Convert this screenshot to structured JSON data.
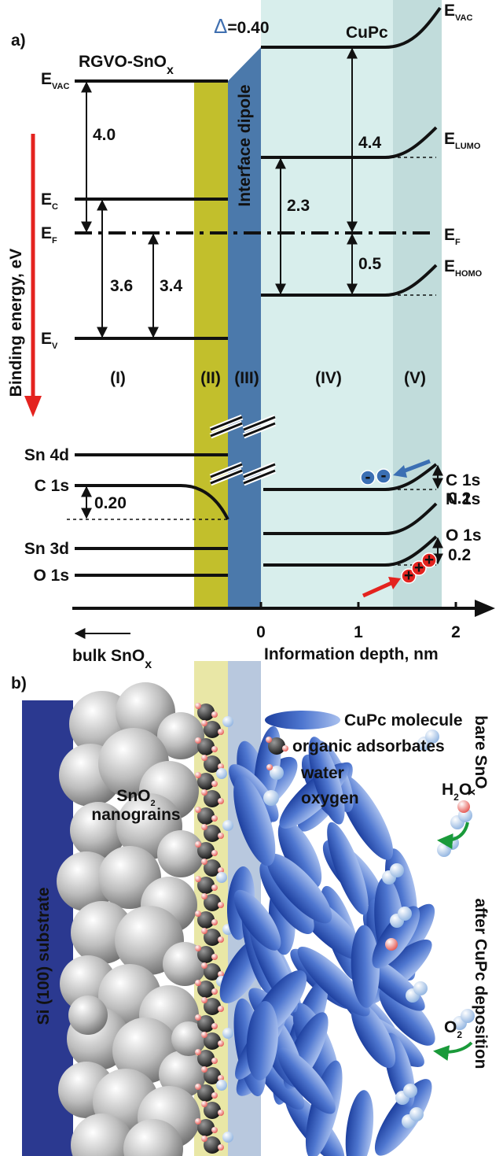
{
  "panel_a": {
    "label": "a)",
    "left_title": {
      "main": "RGVO-SnO",
      "sub": "x"
    },
    "dipole": {
      "symbol": "Δ",
      "text": "=0.40"
    },
    "right_title": "CuPc",
    "interface": "Interface dipole",
    "y_axis": "Binding energy, eV",
    "levels_left": {
      "vac": {
        "main": "E",
        "sub": "VAC"
      },
      "c": {
        "main": "E",
        "sub": "C"
      },
      "f": {
        "main": "E",
        "sub": "F"
      },
      "v": {
        "main": "E",
        "sub": "V"
      }
    },
    "levels_right": {
      "vac": {
        "main": "E",
        "sub": "VAC"
      },
      "lumo": {
        "main": "E",
        "sub": "LUMO"
      },
      "f": {
        "main": "E",
        "sub": "F"
      },
      "homo": {
        "main": "E",
        "sub": "HOMO"
      }
    },
    "gaps": [
      "4.0",
      "3.6",
      "3.4",
      "2.3",
      "4.4",
      "0.5"
    ],
    "regions": [
      "(I)",
      "(II)",
      "(III)",
      "(IV)",
      "(V)"
    ],
    "core_left": [
      "Sn 4d",
      "C 1s",
      "Sn 3d",
      "O 1s"
    ],
    "shift_left": "0.20",
    "core_right": [
      "C 1s",
      "N 1s",
      "O 1s"
    ],
    "shift_right": [
      "0.2",
      "0.2"
    ],
    "charges": {
      "electron": "-",
      "hole": "+"
    },
    "x_ticks": [
      "0",
      "1",
      "2"
    ],
    "bulk": {
      "main": "bulk SnO",
      "sub": "x"
    },
    "x_axis": "Information depth, nm"
  },
  "panel_b": {
    "label": "b)",
    "legend": [
      "CuPc molecule",
      "organic adsorbates",
      "water",
      "oxygen"
    ],
    "grains": {
      "main": "SnO",
      "sub": "2",
      "line2": "nanograins"
    },
    "substrate": "Si (100) substrate",
    "bare": {
      "main": "bare SnO",
      "sub": "x"
    },
    "after": "after CuPc deposition",
    "h2o": {
      "main": "H",
      "sub": "2",
      "rest": "O"
    },
    "o2": {
      "main": "O",
      "sub": "2"
    }
  }
}
